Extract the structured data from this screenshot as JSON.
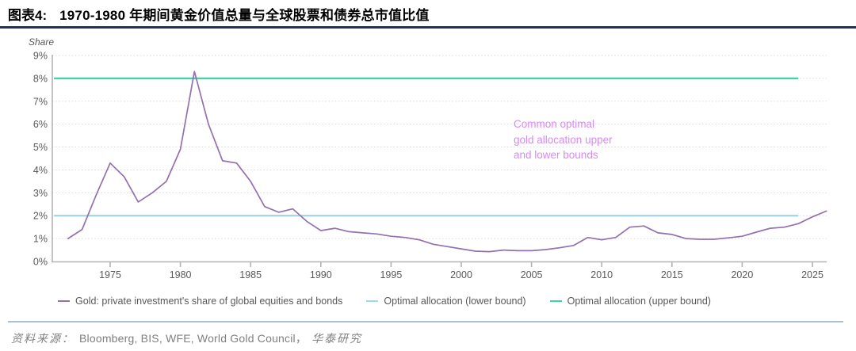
{
  "header": {
    "figure_label": "图表4:",
    "title": "1970-1980 年期间黄金价值总量与全球股票和债券总市值比值"
  },
  "chart_data": {
    "type": "line",
    "title": "1970-1980 年期间黄金价值总量与全球股票和债券总市值比值",
    "ylabel": "Share",
    "xlabel": "",
    "grid": "horizontal-dotted",
    "legend_position": "bottom",
    "y_axis": {
      "min": 0,
      "max": 9,
      "step": 1,
      "suffix": "%"
    },
    "x_axis": {
      "min": 1971,
      "max": 2026.3,
      "ticks": [
        1975,
        1980,
        1985,
        1990,
        1995,
        2000,
        2005,
        2010,
        2015,
        2020,
        2025
      ]
    },
    "series": [
      {
        "name": "Gold: private investment's share of global equities and bonds",
        "type": "line",
        "color": "#9470ae",
        "years": [
          1972,
          1973,
          1974,
          1975,
          1976,
          1977,
          1978,
          1979,
          1980,
          1981,
          1982,
          1983,
          1984,
          1985,
          1986,
          1987,
          1988,
          1989,
          1990,
          1991,
          1992,
          1993,
          1994,
          1995,
          1996,
          1997,
          1998,
          1999,
          2000,
          2001,
          2002,
          2003,
          2004,
          2005,
          2006,
          2007,
          2008,
          2009,
          2010,
          2011,
          2012,
          2013,
          2014,
          2015,
          2016,
          2017,
          2018,
          2019,
          2020,
          2021,
          2022,
          2023,
          2024,
          2025,
          2026
        ],
        "values": [
          1.0,
          1.4,
          2.9,
          4.3,
          3.7,
          2.6,
          3.0,
          3.5,
          4.9,
          8.3,
          6.0,
          4.4,
          4.3,
          3.5,
          2.4,
          2.15,
          2.3,
          1.75,
          1.35,
          1.45,
          1.3,
          1.25,
          1.2,
          1.1,
          1.05,
          0.95,
          0.75,
          0.65,
          0.55,
          0.45,
          0.43,
          0.5,
          0.47,
          0.47,
          0.52,
          0.6,
          0.7,
          1.05,
          0.95,
          1.05,
          1.5,
          1.55,
          1.25,
          1.18,
          1.0,
          0.97,
          0.97,
          1.03,
          1.1,
          1.28,
          1.45,
          1.5,
          1.65,
          1.95,
          2.2
        ]
      },
      {
        "name": "Optimal allocation (lower bound)",
        "type": "hline",
        "color": "#a3d7f0",
        "value": 2,
        "x_start": 1971,
        "x_end": 2024
      },
      {
        "name": "Optimal allocation (upper bound)",
        "type": "hline",
        "color": "#41d2aa",
        "value": 8,
        "x_start": 1971,
        "x_end": 2024
      }
    ],
    "annotation": {
      "text": "Common optimal\ngold allocation upper\nand lower bounds",
      "color": "#d78af3"
    }
  },
  "legend": {
    "items": [
      {
        "label": "Gold: private investment's share of global equities and bonds"
      },
      {
        "label": "Optimal allocation (lower bound)"
      },
      {
        "label": "Optimal allocation (upper bound)"
      }
    ]
  },
  "footer": {
    "source_label": "资料来源：",
    "sources": "Bloomberg, BIS, WFE, World Gold Council，",
    "publisher": "华泰研究"
  },
  "colors": {
    "gridline": "#d9d9d9",
    "axis": "#b3b3b3",
    "tick_text": "#595959",
    "title_rule": "#1c3557",
    "footer_rule": "#a9bfd3"
  }
}
